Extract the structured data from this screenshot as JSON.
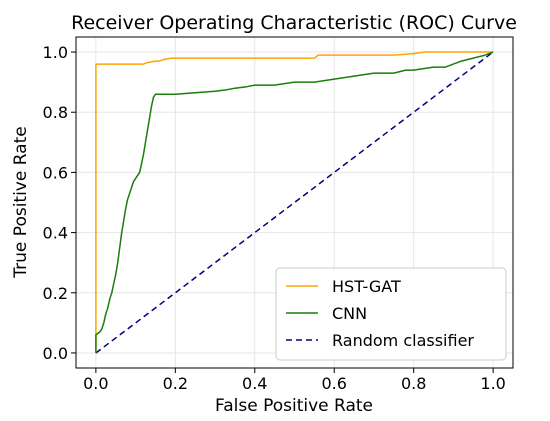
{
  "chart_data": {
    "type": "line",
    "title": "Receiver Operating Characteristic (ROC) Curve",
    "xlabel": "False Positive Rate",
    "ylabel": "True Positive Rate",
    "xlim": [
      -0.05,
      1.05
    ],
    "ylim": [
      -0.05,
      1.05
    ],
    "xticks": [
      0.0,
      0.2,
      0.4,
      0.6,
      0.8,
      1.0
    ],
    "yticks": [
      0.0,
      0.2,
      0.4,
      0.6,
      0.8,
      1.0
    ],
    "xtick_labels": [
      "0.0",
      "0.2",
      "0.4",
      "0.6",
      "0.8",
      "1.0"
    ],
    "ytick_labels": [
      "0.0",
      "0.2",
      "0.4",
      "0.6",
      "0.8",
      "1.0"
    ],
    "grid": true,
    "legend": "bottom-right",
    "series": [
      {
        "name": "HST-GAT",
        "color": "#ffa500",
        "style": "solid",
        "x": [
          0.0,
          0.0,
          0.06,
          0.12,
          0.13,
          0.15,
          0.16,
          0.17,
          0.19,
          0.21,
          0.3,
          0.4,
          0.5,
          0.55,
          0.56,
          0.6,
          0.65,
          0.7,
          0.75,
          0.8,
          0.83,
          0.85,
          0.9,
          0.95,
          1.0
        ],
        "y": [
          0.0,
          0.96,
          0.96,
          0.96,
          0.965,
          0.97,
          0.97,
          0.975,
          0.98,
          0.98,
          0.98,
          0.98,
          0.98,
          0.98,
          0.99,
          0.99,
          0.99,
          0.99,
          0.99,
          0.995,
          1.0,
          1.0,
          1.0,
          1.0,
          1.0
        ]
      },
      {
        "name": "CNN",
        "color": "#1a7f0a",
        "style": "solid",
        "x": [
          0.0,
          0.0,
          0.01,
          0.015,
          0.02,
          0.025,
          0.03,
          0.035,
          0.04,
          0.045,
          0.05,
          0.055,
          0.06,
          0.065,
          0.07,
          0.075,
          0.08,
          0.085,
          0.09,
          0.095,
          0.1,
          0.105,
          0.11,
          0.115,
          0.12,
          0.125,
          0.13,
          0.135,
          0.14,
          0.145,
          0.15,
          0.2,
          0.25,
          0.3,
          0.33,
          0.35,
          0.38,
          0.4,
          0.45,
          0.5,
          0.55,
          0.6,
          0.65,
          0.7,
          0.75,
          0.78,
          0.8,
          0.85,
          0.88,
          0.9,
          0.92,
          0.95,
          0.98,
          1.0
        ],
        "y": [
          0.0,
          0.06,
          0.07,
          0.08,
          0.1,
          0.13,
          0.15,
          0.18,
          0.2,
          0.23,
          0.26,
          0.3,
          0.35,
          0.4,
          0.44,
          0.48,
          0.51,
          0.53,
          0.55,
          0.57,
          0.58,
          0.59,
          0.6,
          0.63,
          0.66,
          0.7,
          0.74,
          0.78,
          0.82,
          0.85,
          0.86,
          0.86,
          0.865,
          0.87,
          0.875,
          0.88,
          0.885,
          0.89,
          0.89,
          0.9,
          0.9,
          0.91,
          0.92,
          0.93,
          0.93,
          0.94,
          0.94,
          0.95,
          0.95,
          0.96,
          0.97,
          0.98,
          0.99,
          1.0
        ]
      },
      {
        "name": "Random classifier",
        "color": "#000080",
        "style": "dashed",
        "x": [
          0.0,
          1.0
        ],
        "y": [
          0.0,
          1.0
        ]
      }
    ]
  }
}
